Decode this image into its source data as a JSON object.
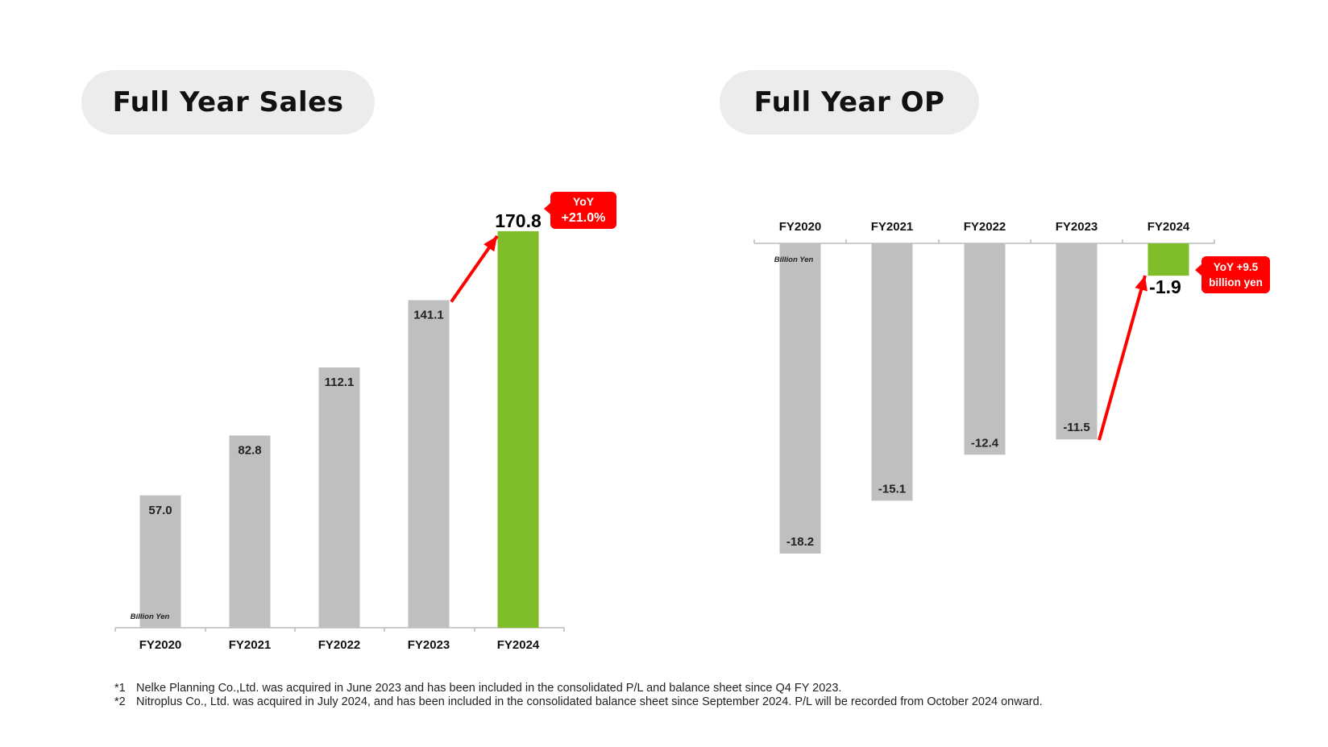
{
  "sales_panel": {
    "title": "Full Year Sales"
  },
  "op_panel": {
    "title": "Full Year OP"
  },
  "chart_data": [
    {
      "type": "bar",
      "title": "Full Year Sales",
      "unit_label": "Billion Yen",
      "categories": [
        "FY2020",
        "FY2021",
        "FY2022",
        "FY2023",
        "FY2024"
      ],
      "values": [
        57.0,
        82.8,
        112.1,
        141.1,
        170.8
      ],
      "value_labels": [
        "57.0",
        "82.8",
        "112.1",
        "141.1",
        "170.8"
      ],
      "highlight_index": 4,
      "colors": {
        "bar": "#bfbfbf",
        "highlight": "#80bd2a",
        "callout": "#ff0000"
      },
      "callout": {
        "line1": "YoY",
        "line2": "+21.0%"
      }
    },
    {
      "type": "bar",
      "title": "Full Year OP",
      "unit_label": "Billion Yen",
      "categories": [
        "FY2020",
        "FY2021",
        "FY2022",
        "FY2023",
        "FY2024"
      ],
      "values": [
        -18.2,
        -15.1,
        -12.4,
        -11.5,
        -1.9
      ],
      "value_labels": [
        "-18.2",
        "-15.1",
        "-12.4",
        "-11.5",
        "-1.9"
      ],
      "highlight_index": 4,
      "colors": {
        "bar": "#bfbfbf",
        "highlight": "#80bd2a",
        "callout": "#ff0000"
      },
      "callout": {
        "line1": "YoY  +9.5",
        "line2": "billion yen"
      }
    }
  ],
  "footnotes": [
    {
      "mark": "*1",
      "text": "Nelke Planning Co.,Ltd. was acquired in June 2023 and has been included in the consolidated P/L and balance sheet since Q4 FY 2023."
    },
    {
      "mark": "*2",
      "text": "Nitroplus Co., Ltd. was acquired in July 2024, and has been included in the consolidated balance sheet since September 2024. P/L will be recorded from October 2024 onward."
    }
  ]
}
